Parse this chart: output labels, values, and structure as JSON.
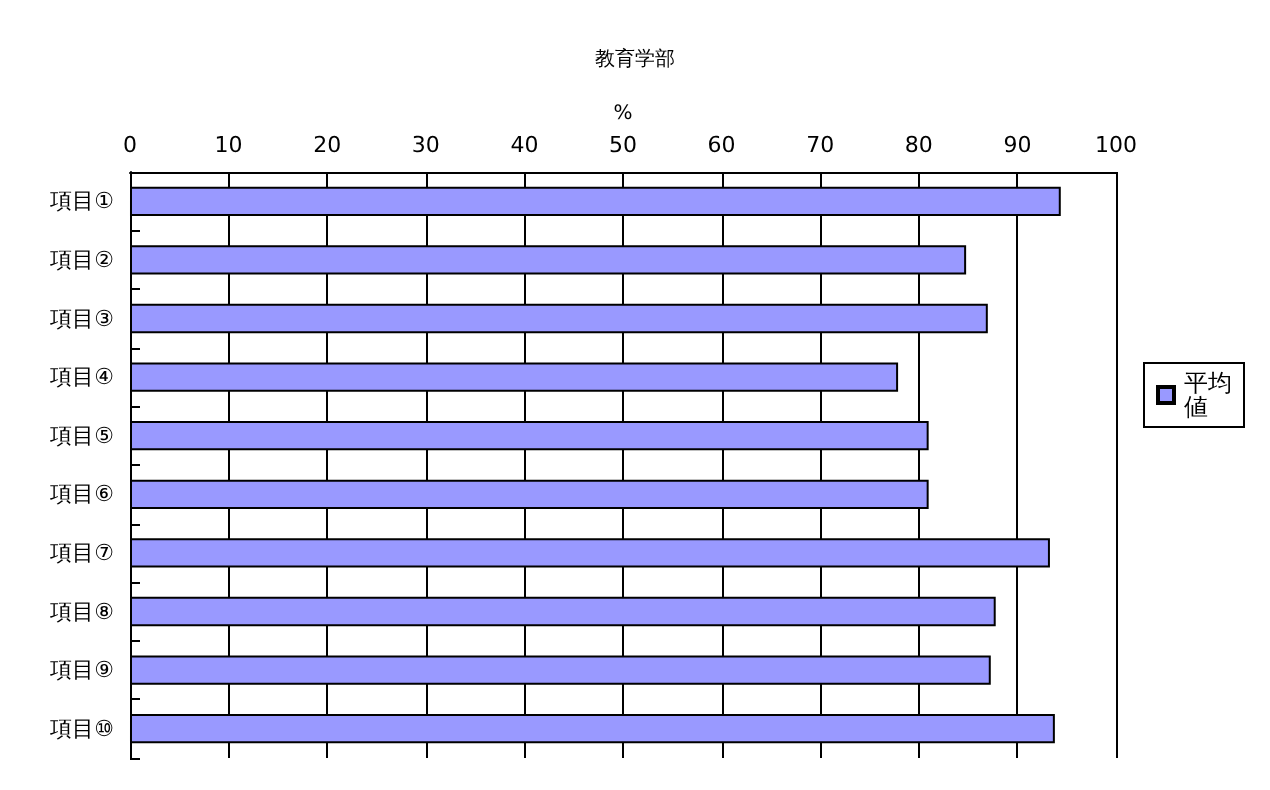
{
  "chart_data": {
    "type": "bar",
    "orientation": "horizontal",
    "title": "教育学部",
    "xlabel": "%",
    "categories": [
      "項目①",
      "項目②",
      "項目③",
      "項目④",
      "項目⑤",
      "項目⑥",
      "項目⑦",
      "項目⑧",
      "項目⑨",
      "項目⑩"
    ],
    "series": [
      {
        "name": "平均値",
        "color": "#9999ff",
        "values": [
          94.4,
          84.8,
          87.0,
          77.9,
          81.0,
          81.0,
          93.3,
          87.8,
          87.3,
          93.8
        ]
      }
    ],
    "xlim": [
      0,
      100
    ],
    "xticks": [
      0,
      10,
      20,
      30,
      40,
      50,
      60,
      70,
      80,
      90,
      100
    ],
    "grid": "x",
    "legend": "right"
  }
}
